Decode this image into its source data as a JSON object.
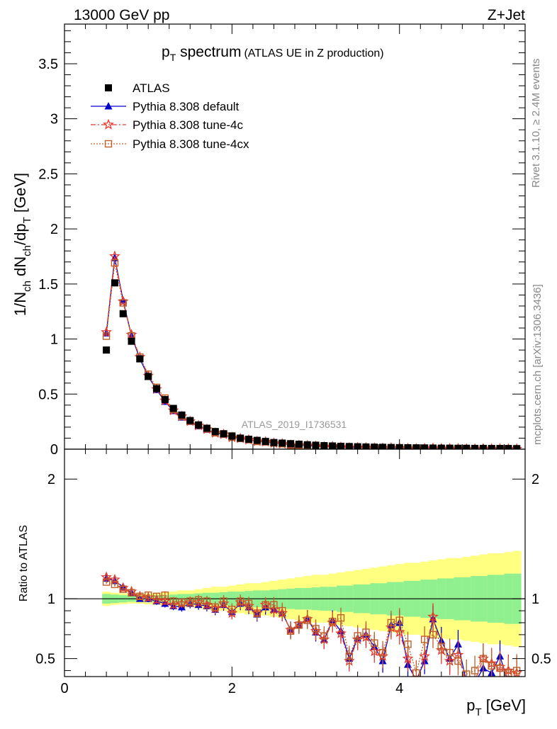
{
  "header": {
    "left": "13000 GeV pp",
    "right": "Z+Jet"
  },
  "side_text": {
    "rivet": "Rivet 3.1.10, ≥ 2.4M events",
    "mcplots": "mcplots.cern.ch [arXiv:1306.3436]"
  },
  "watermark": "ATLAS_2019_I1736531",
  "chart_data": {
    "type": "scatter",
    "title": {
      "main": "p",
      "main_sub": "T",
      "main_rest": " spectrum",
      "detail": "(ATLAS UE in Z production)"
    },
    "xlabel": {
      "main": "p",
      "sub": "T",
      "rest": " [GeV]"
    },
    "ylabel": "1/N_ch dN_ch/dp_T [GeV]",
    "ratio_ylabel": "Ratio to ATLAS",
    "xlim": [
      0,
      5.5
    ],
    "ylim": [
      0,
      3.86
    ],
    "ratio_ylim": [
      0.35,
      2.25
    ],
    "x_ticks": [
      "0",
      "2",
      "4"
    ],
    "y_ticks": [
      "0",
      "0.5",
      "1",
      "1.5",
      "2",
      "2.5",
      "3",
      "3.5"
    ],
    "ratio_ticks": [
      "0.5",
      "1",
      "2"
    ],
    "grid": false,
    "legend_position": "top-left",
    "x": [
      0.5,
      0.6,
      0.7,
      0.8,
      0.9,
      1.0,
      1.1,
      1.2,
      1.3,
      1.4,
      1.5,
      1.6,
      1.7,
      1.8,
      1.9,
      2.0,
      2.1,
      2.2,
      2.3,
      2.4,
      2.5,
      2.6,
      2.7,
      2.8,
      2.9,
      3.0,
      3.1,
      3.2,
      3.3,
      3.4,
      3.5,
      3.6,
      3.7,
      3.8,
      3.9,
      4.0,
      4.1,
      4.2,
      4.3,
      4.4,
      4.5,
      4.6,
      4.7,
      4.8,
      4.9,
      5.0,
      5.1,
      5.2,
      5.3,
      5.4
    ],
    "series": [
      {
        "name": "ATLAS",
        "color": "#000000",
        "values": [
          0.9,
          1.51,
          1.23,
          0.98,
          0.82,
          0.66,
          0.55,
          0.45,
          0.37,
          0.31,
          0.26,
          0.22,
          0.19,
          0.16,
          0.14,
          0.12,
          0.1,
          0.09,
          0.08,
          0.07,
          0.06,
          0.055,
          0.05,
          0.045,
          0.04,
          0.036,
          0.032,
          0.029,
          0.026,
          0.024,
          0.022,
          0.02,
          0.018,
          0.017,
          0.015,
          0.014,
          0.013,
          0.012,
          0.011,
          0.01,
          0.009,
          0.009,
          0.008,
          0.008,
          0.007,
          0.007,
          0.006,
          0.006,
          0.006,
          0.005
        ]
      },
      {
        "name": "Pythia 8.308 default",
        "color": "#0000cc",
        "ratio": [
          1.17,
          1.15,
          1.1,
          1.05,
          1.0,
          1.0,
          0.98,
          0.96,
          0.94,
          0.93,
          0.96,
          0.95,
          0.94,
          0.91,
          0.95,
          0.89,
          0.96,
          0.93,
          0.87,
          0.93,
          0.91,
          0.88,
          0.74,
          0.78,
          0.83,
          0.72,
          0.66,
          0.82,
          0.73,
          0.5,
          0.67,
          0.7,
          0.6,
          0.48,
          0.78,
          0.8,
          0.45,
          0.32,
          0.48,
          0.83,
          0.65,
          0.5,
          0.62,
          0.3,
          0.3,
          0.42,
          0.38,
          0.52,
          0.3,
          0.28
        ]
      },
      {
        "name": "Pythia 8.308 tune-4c",
        "color": "#e8382c",
        "ratio": [
          1.18,
          1.16,
          1.09,
          1.06,
          1.02,
          1.01,
          0.99,
          0.98,
          0.95,
          0.96,
          0.97,
          0.97,
          0.95,
          0.92,
          0.96,
          0.88,
          0.97,
          0.94,
          0.88,
          0.95,
          0.91,
          0.88,
          0.74,
          0.79,
          0.83,
          0.73,
          0.66,
          0.8,
          0.71,
          0.48,
          0.66,
          0.68,
          0.56,
          0.52,
          0.76,
          0.72,
          0.5,
          0.3,
          0.52,
          0.85,
          0.57,
          0.48,
          0.53,
          0.3,
          0.31,
          0.5,
          0.46,
          0.43,
          0.4,
          0.38
        ]
      },
      {
        "name": "Pythia 8.308 tune-4cx",
        "color": "#c06028",
        "ratio": [
          1.14,
          1.12,
          1.08,
          1.05,
          1.02,
          1.03,
          1.02,
          1.03,
          0.98,
          0.97,
          0.98,
          0.99,
          0.98,
          0.93,
          0.98,
          0.91,
          0.98,
          0.96,
          0.88,
          0.95,
          0.95,
          0.9,
          0.73,
          0.78,
          0.82,
          0.75,
          0.69,
          0.81,
          0.84,
          0.52,
          0.69,
          0.72,
          0.63,
          0.55,
          0.8,
          0.82,
          0.62,
          0.38,
          0.66,
          0.7,
          0.6,
          0.55,
          0.48,
          0.37,
          0.4,
          0.5,
          0.44,
          0.42,
          0.38,
          0.4
        ]
      }
    ],
    "ratio_bands": {
      "green_halfwidth": [
        0.04,
        0.035,
        0.03,
        0.025,
        0.025,
        0.025,
        0.03,
        0.03,
        0.035,
        0.04,
        0.04,
        0.045,
        0.05,
        0.05,
        0.055,
        0.06,
        0.06,
        0.065,
        0.07,
        0.07,
        0.075,
        0.08,
        0.085,
        0.09,
        0.09,
        0.095,
        0.1,
        0.1,
        0.11,
        0.11,
        0.12,
        0.12,
        0.13,
        0.13,
        0.14,
        0.14,
        0.15,
        0.15,
        0.16,
        0.16,
        0.17,
        0.17,
        0.18,
        0.18,
        0.19,
        0.19,
        0.2,
        0.2,
        0.21,
        0.21
      ],
      "yellow_halfwidth": [
        0.06,
        0.05,
        0.045,
        0.04,
        0.04,
        0.045,
        0.05,
        0.055,
        0.06,
        0.07,
        0.07,
        0.08,
        0.09,
        0.1,
        0.1,
        0.11,
        0.12,
        0.13,
        0.13,
        0.14,
        0.15,
        0.16,
        0.17,
        0.18,
        0.19,
        0.2,
        0.2,
        0.21,
        0.22,
        0.23,
        0.24,
        0.25,
        0.26,
        0.27,
        0.28,
        0.29,
        0.3,
        0.3,
        0.31,
        0.32,
        0.33,
        0.34,
        0.34,
        0.35,
        0.36,
        0.37,
        0.38,
        0.38,
        0.39,
        0.4
      ],
      "green_color": "#90f090",
      "yellow_color": "#ffff80"
    }
  }
}
